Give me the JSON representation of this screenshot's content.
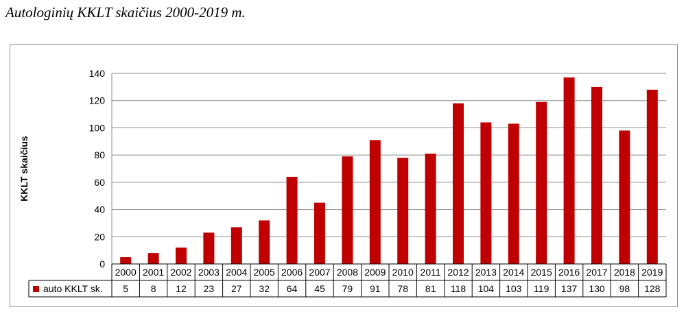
{
  "page_title": "Autologinių KKLT skaičius 2000-2019 m.",
  "colors": {
    "bar": "#C00000",
    "grid": "#8c8c8c",
    "table_border": "#000000"
  },
  "chart_data": {
    "type": "bar",
    "title": "",
    "xlabel": "",
    "ylabel": "KKLT skaičius",
    "ylim": [
      0,
      140
    ],
    "yticks": [
      0,
      20,
      40,
      60,
      80,
      100,
      120,
      140
    ],
    "grid": true,
    "legend_placement": "data-table",
    "categories": [
      "2000",
      "2001",
      "2002",
      "2003",
      "2004",
      "2005",
      "2006",
      "2007",
      "2008",
      "2009",
      "2010",
      "2011",
      "2012",
      "2013",
      "2014",
      "2015",
      "2016",
      "2017",
      "2018",
      "2019"
    ],
    "series": [
      {
        "name": "auto KKLT sk.",
        "values": [
          5,
          8,
          12,
          23,
          27,
          32,
          64,
          45,
          79,
          91,
          78,
          81,
          118,
          104,
          103,
          119,
          137,
          130,
          98,
          128
        ]
      }
    ]
  }
}
